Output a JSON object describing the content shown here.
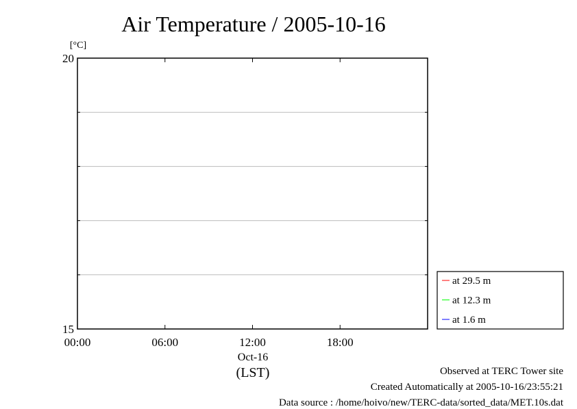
{
  "chart_data": {
    "type": "line",
    "title": "Air Temperature / 2005-10-16",
    "ylabel": "[°C]",
    "ylim": [
      15,
      20
    ],
    "y_tick_labels": [
      "20",
      "15"
    ],
    "y_gridlines": [
      16,
      17,
      18,
      19
    ],
    "xlim_hours": [
      0,
      24
    ],
    "x_ticks": [
      {
        "hour": 0,
        "label": "00:00"
      },
      {
        "hour": 6,
        "label": "06:00"
      },
      {
        "hour": 12,
        "label": "12:00"
      },
      {
        "hour": 18,
        "label": "18:00"
      }
    ],
    "x_date_label": "Oct-16",
    "x_timezone_label": "(LST)",
    "grid": true,
    "legend_position": "bottom-right, outside plot",
    "series": [
      {
        "name": "at 29.5 m",
        "color": "#ff0000",
        "values": []
      },
      {
        "name": "at 12.3 m",
        "color": "#00ff00",
        "values": []
      },
      {
        "name": "at 1.6 m",
        "color": "#0000ff",
        "values": []
      }
    ]
  },
  "footer": {
    "line1": "Observed at TERC Tower site",
    "line2": "Created Automatically at 2005-10-16/23:55:21",
    "line3": "Data source : /home/hoivo/new/TERC-data/sorted_data/MET.10s.dat"
  }
}
